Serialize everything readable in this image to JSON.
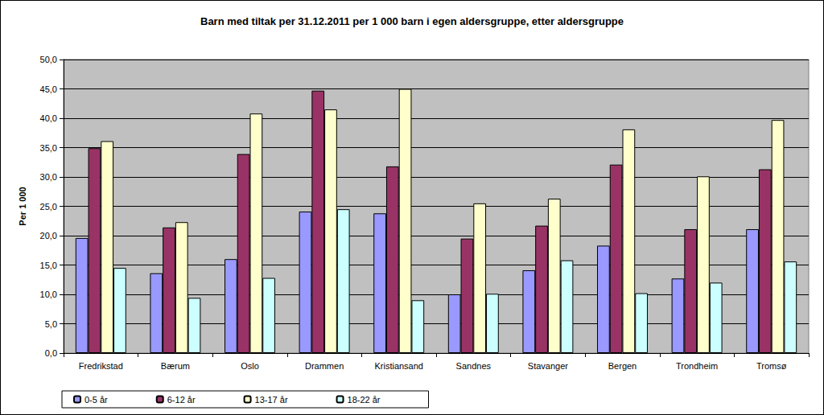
{
  "chart_data": {
    "type": "bar",
    "title": "Barn med tiltak per 31.12.2011 per 1 000 barn i egen aldersgruppe, etter aldersgruppe",
    "y_label": "Per 1 000",
    "categories": [
      "Fredrikstad",
      "Bærum",
      "Oslo",
      "Drammen",
      "Kristiansand",
      "Sandnes",
      "Stavanger",
      "Bergen",
      "Trondheim",
      "Tromsø"
    ],
    "series": [
      {
        "name": "0-5 år",
        "color": "#9999ff",
        "values": [
          19.6,
          13.6,
          16.0,
          24.1,
          23.8,
          10.0,
          14.1,
          18.3,
          12.7,
          21.1
        ]
      },
      {
        "name": "6-12 år",
        "color": "#993366",
        "values": [
          34.9,
          21.4,
          33.9,
          44.7,
          31.8,
          19.5,
          21.7,
          32.1,
          21.1,
          31.3
        ]
      },
      {
        "name": "13-17 år",
        "color": "#ffffcc",
        "values": [
          36.1,
          22.3,
          40.8,
          41.5,
          45.0,
          25.5,
          26.3,
          38.1,
          30.1,
          39.7
        ]
      },
      {
        "name": "18-22 år",
        "color": "#ccffff",
        "values": [
          14.5,
          9.4,
          12.8,
          24.5,
          9.0,
          10.1,
          15.8,
          10.2,
          12.0,
          15.6
        ]
      }
    ],
    "ylim": [
      0,
      50
    ],
    "yticks": [
      {
        "value": 0,
        "label": "0,0"
      },
      {
        "value": 5,
        "label": "5,0"
      },
      {
        "value": 10,
        "label": "10,0"
      },
      {
        "value": 15,
        "label": "15,0"
      },
      {
        "value": 20,
        "label": "20,0"
      },
      {
        "value": 25,
        "label": "25,0"
      },
      {
        "value": 30,
        "label": "30,0"
      },
      {
        "value": 35,
        "label": "35,0"
      },
      {
        "value": 40,
        "label": "40,0"
      },
      {
        "value": 45,
        "label": "45,0"
      },
      {
        "value": 50,
        "label": "50,0"
      }
    ],
    "grid": true,
    "legend": "bottom"
  }
}
